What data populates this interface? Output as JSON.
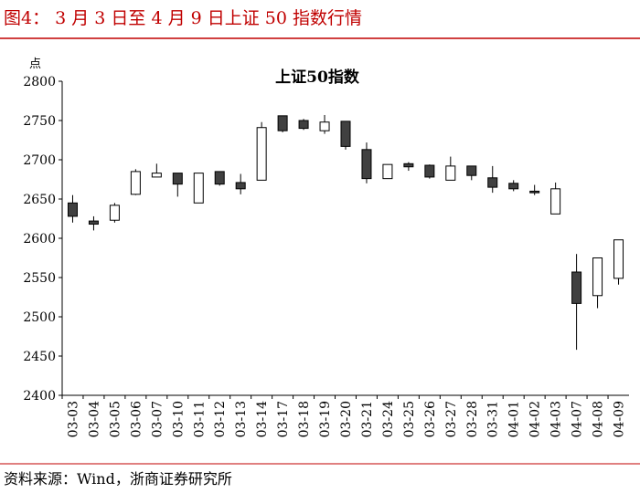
{
  "header": {
    "title": "图4： 3 月 3 日至 4 月 9 日上证 50 指数行情"
  },
  "chart_data": {
    "type": "candlestick",
    "title": "上证50指数",
    "y_label": "点",
    "categories": [
      "03-03",
      "03-04",
      "03-05",
      "03-06",
      "03-07",
      "03-10",
      "03-11",
      "03-12",
      "03-13",
      "03-14",
      "03-17",
      "03-18",
      "03-19",
      "03-20",
      "03-21",
      "03-24",
      "03-25",
      "03-26",
      "03-27",
      "03-28",
      "03-31",
      "04-01",
      "04-02",
      "04-03",
      "04-07",
      "04-08",
      "04-09"
    ],
    "open": [
      2645,
      2622,
      2623,
      2656,
      2678,
      2683,
      2645,
      2685,
      2671,
      2674,
      2756,
      2750,
      2737,
      2749,
      2713,
      2676,
      2695,
      2693,
      2674,
      2692,
      2677,
      2670,
      2660,
      2631,
      2557,
      2527,
      2549
    ],
    "high": [
      2655,
      2628,
      2645,
      2688,
      2695,
      2683,
      2683,
      2685,
      2682,
      2748,
      2756,
      2752,
      2757,
      2749,
      2722,
      2694,
      2697,
      2694,
      2704,
      2692,
      2692,
      2674,
      2668,
      2671,
      2580,
      2575,
      2598
    ],
    "low": [
      2620,
      2610,
      2620,
      2655,
      2678,
      2653,
      2645,
      2667,
      2656,
      2674,
      2735,
      2738,
      2733,
      2713,
      2670,
      2676,
      2686,
      2676,
      2674,
      2674,
      2658,
      2660,
      2655,
      2631,
      2458,
      2511,
      2541
    ],
    "close": [
      2628,
      2618,
      2642,
      2685,
      2683,
      2669,
      2683,
      2669,
      2663,
      2741,
      2737,
      2740,
      2748,
      2717,
      2676,
      2694,
      2691,
      2678,
      2692,
      2680,
      2665,
      2663,
      2658,
      2663,
      2517,
      2575,
      2598
    ],
    "up_color": "#ffffff",
    "down_color": "#404040",
    "ylim": [
      2400,
      2800
    ],
    "yticks": [
      2400,
      2450,
      2500,
      2550,
      2600,
      2650,
      2700,
      2750,
      2800
    ]
  },
  "footer": {
    "source": "资料来源：Wind，浙商证券研究所"
  }
}
